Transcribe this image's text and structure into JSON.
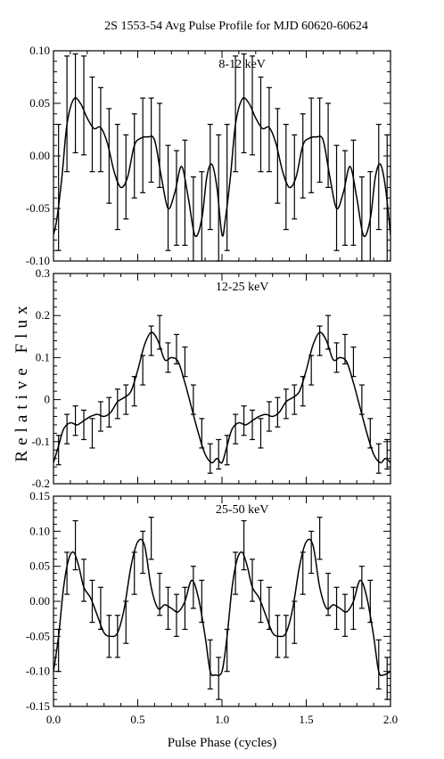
{
  "title": "2S 1553-54 Avg Pulse Profile for MJD 60620-60624",
  "xlabel": "Pulse Phase (cycles)",
  "ylabel": "Relative Flux",
  "line_color": "#000000",
  "chart_data": [
    {
      "type": "line",
      "panel_label": "8-12 keV",
      "xlim": [
        0.0,
        2.0
      ],
      "ylim": [
        -0.1,
        0.1
      ],
      "xticks": [
        "0.0",
        "0.5",
        "1.0",
        "1.5",
        "2.0"
      ],
      "yticks": [
        "-0.10",
        "-0.05",
        "0.00",
        "0.05",
        "0.10"
      ],
      "ytick_values": [
        -0.1,
        -0.05,
        0.0,
        0.05,
        0.1
      ],
      "curve": {
        "x": [
          0.0,
          0.02,
          0.05,
          0.08,
          0.12,
          0.16,
          0.2,
          0.24,
          0.28,
          0.32,
          0.36,
          0.4,
          0.44,
          0.48,
          0.52,
          0.56,
          0.6,
          0.64,
          0.68,
          0.72,
          0.76,
          0.8,
          0.84,
          0.88,
          0.91,
          0.94,
          0.97,
          1.0
        ],
        "y": [
          -0.075,
          -0.06,
          -0.02,
          0.03,
          0.054,
          0.05,
          0.036,
          0.026,
          0.027,
          0.012,
          -0.015,
          -0.03,
          -0.02,
          0.01,
          0.017,
          0.018,
          0.015,
          -0.02,
          -0.05,
          -0.035,
          -0.01,
          -0.04,
          -0.076,
          -0.06,
          -0.02,
          -0.008,
          -0.03,
          -0.075
        ]
      },
      "points": {
        "x": [
          0.03,
          0.08,
          0.13,
          0.18,
          0.23,
          0.28,
          0.33,
          0.38,
          0.43,
          0.48,
          0.53,
          0.58,
          0.63,
          0.68,
          0.73,
          0.78,
          0.83,
          0.88,
          0.93,
          0.98
        ],
        "y": [
          -0.03,
          0.04,
          0.05,
          0.048,
          0.03,
          0.025,
          0.0,
          -0.02,
          -0.02,
          0.0,
          0.01,
          0.015,
          0.01,
          -0.04,
          -0.04,
          -0.035,
          -0.06,
          -0.06,
          -0.02,
          -0.04
        ],
        "err": [
          0.06,
          0.055,
          0.047,
          0.047,
          0.045,
          0.04,
          0.045,
          0.05,
          0.04,
          0.04,
          0.045,
          0.04,
          0.04,
          0.05,
          0.045,
          0.05,
          0.04,
          0.045,
          0.05,
          0.06
        ]
      }
    },
    {
      "type": "line",
      "panel_label": "12-25 keV",
      "xlim": [
        0.0,
        2.0
      ],
      "ylim": [
        -0.2,
        0.3
      ],
      "xticks": [
        "0.0",
        "0.5",
        "1.0",
        "1.5",
        "2.0"
      ],
      "yticks": [
        "-0.2",
        "-0.1",
        "0",
        "0.1",
        "0.2",
        "0.3"
      ],
      "ytick_values": [
        -0.2,
        -0.1,
        0.0,
        0.1,
        0.2,
        0.3
      ],
      "curve": {
        "x": [
          0.0,
          0.03,
          0.06,
          0.1,
          0.14,
          0.18,
          0.22,
          0.26,
          0.3,
          0.34,
          0.38,
          0.42,
          0.46,
          0.5,
          0.54,
          0.58,
          0.62,
          0.66,
          0.7,
          0.74,
          0.78,
          0.82,
          0.86,
          0.9,
          0.94,
          0.97,
          1.0
        ],
        "y": [
          -0.15,
          -0.11,
          -0.07,
          -0.055,
          -0.06,
          -0.05,
          -0.04,
          -0.035,
          -0.04,
          -0.03,
          -0.005,
          0.005,
          0.02,
          0.07,
          0.13,
          0.16,
          0.14,
          0.095,
          0.1,
          0.09,
          0.04,
          -0.02,
          -0.08,
          -0.13,
          -0.15,
          -0.14,
          -0.15
        ]
      },
      "points": {
        "x": [
          0.03,
          0.08,
          0.13,
          0.18,
          0.23,
          0.28,
          0.33,
          0.38,
          0.43,
          0.48,
          0.53,
          0.58,
          0.63,
          0.68,
          0.73,
          0.78,
          0.83,
          0.88,
          0.93,
          0.98
        ],
        "y": [
          -0.12,
          -0.07,
          -0.05,
          -0.06,
          -0.08,
          -0.04,
          -0.03,
          -0.01,
          0.0,
          0.02,
          0.07,
          0.14,
          0.16,
          0.1,
          0.12,
          0.09,
          0.0,
          -0.08,
          -0.14,
          -0.13
        ],
        "err": [
          0.035,
          0.035,
          0.035,
          0.035,
          0.035,
          0.035,
          0.035,
          0.035,
          0.035,
          0.035,
          0.035,
          0.035,
          0.04,
          0.035,
          0.035,
          0.035,
          0.035,
          0.035,
          0.035,
          0.035
        ]
      }
    },
    {
      "type": "line",
      "panel_label": "25-50 keV",
      "xlim": [
        0.0,
        2.0
      ],
      "ylim": [
        -0.15,
        0.15
      ],
      "xticks": [
        "0.0",
        "0.5",
        "1.0",
        "1.5",
        "2.0"
      ],
      "yticks": [
        "-0.15",
        "-0.10",
        "-0.05",
        "0.00",
        "0.05",
        "0.10",
        "0.15"
      ],
      "ytick_values": [
        -0.15,
        -0.1,
        -0.05,
        0.0,
        0.05,
        0.1,
        0.15
      ],
      "curve": {
        "x": [
          0.0,
          0.03,
          0.06,
          0.09,
          0.12,
          0.15,
          0.18,
          0.22,
          0.26,
          0.3,
          0.34,
          0.38,
          0.42,
          0.46,
          0.5,
          0.54,
          0.58,
          0.62,
          0.66,
          0.7,
          0.74,
          0.78,
          0.82,
          0.86,
          0.9,
          0.93,
          0.96,
          1.0
        ],
        "y": [
          -0.1,
          -0.05,
          0.02,
          0.06,
          0.07,
          0.05,
          0.02,
          0.005,
          -0.02,
          -0.045,
          -0.05,
          -0.045,
          -0.01,
          0.05,
          0.085,
          0.08,
          0.02,
          -0.01,
          -0.005,
          -0.01,
          -0.015,
          0.0,
          0.03,
          0.005,
          -0.05,
          -0.1,
          -0.105,
          -0.1
        ]
      },
      "points": {
        "x": [
          0.03,
          0.08,
          0.13,
          0.18,
          0.23,
          0.28,
          0.33,
          0.38,
          0.43,
          0.48,
          0.53,
          0.58,
          0.63,
          0.68,
          0.73,
          0.78,
          0.83,
          0.88,
          0.93,
          0.98
        ],
        "y": [
          -0.07,
          0.04,
          0.08,
          0.03,
          0.0,
          -0.01,
          -0.05,
          -0.05,
          -0.03,
          0.04,
          0.07,
          0.09,
          0.01,
          -0.01,
          -0.02,
          -0.01,
          0.02,
          0.0,
          -0.09,
          -0.11
        ],
        "err": [
          0.03,
          0.03,
          0.035,
          0.03,
          0.03,
          0.03,
          0.03,
          0.03,
          0.03,
          0.03,
          0.03,
          0.03,
          0.03,
          0.03,
          0.03,
          0.03,
          0.03,
          0.03,
          0.035,
          0.03
        ]
      }
    }
  ]
}
